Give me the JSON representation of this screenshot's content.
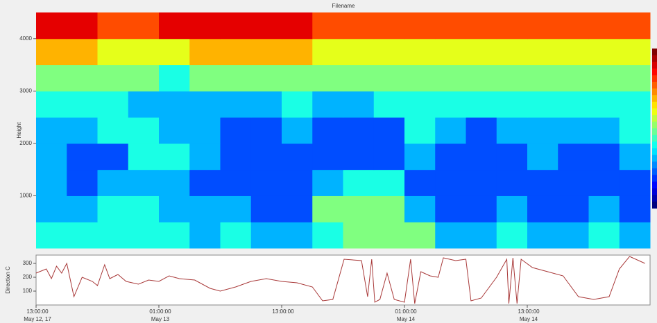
{
  "chart_data": [
    {
      "type": "heatmap",
      "title": "Filename",
      "ylabel": "Height",
      "xbins": [
        0,
        3,
        6,
        9,
        12,
        15,
        18,
        21,
        24,
        27,
        30,
        33,
        36,
        39,
        42,
        45,
        48,
        51,
        54,
        57,
        60
      ],
      "ybins": [
        0,
        500,
        1000,
        1500,
        2000,
        2500,
        3000,
        3500,
        4000,
        4500
      ],
      "z": [
        [
          4,
          4,
          4,
          4,
          4,
          3,
          4,
          3,
          3,
          4,
          5,
          5,
          5,
          3,
          3,
          4,
          3,
          3,
          4,
          3
        ],
        [
          3,
          3,
          4,
          4,
          3,
          3,
          3,
          2,
          2,
          5,
          5,
          5,
          3,
          2,
          2,
          3,
          2,
          2,
          3,
          2
        ],
        [
          3,
          2,
          3,
          3,
          3,
          2,
          2,
          2,
          2,
          3,
          4,
          4,
          2,
          2,
          2,
          2,
          2,
          2,
          2,
          2
        ],
        [
          3,
          2,
          2,
          4,
          4,
          3,
          2,
          2,
          2,
          2,
          2,
          2,
          3,
          2,
          2,
          2,
          3,
          2,
          2,
          3
        ],
        [
          3,
          3,
          4,
          4,
          3,
          3,
          2,
          2,
          3,
          2,
          2,
          2,
          4,
          3,
          2,
          3,
          3,
          3,
          3,
          4
        ],
        [
          4,
          4,
          4,
          3,
          3,
          3,
          3,
          3,
          4,
          3,
          3,
          4,
          4,
          4,
          4,
          4,
          4,
          4,
          4,
          4
        ],
        [
          5,
          5,
          5,
          5,
          4,
          5,
          5,
          5,
          5,
          5,
          5,
          5,
          5,
          5,
          5,
          5,
          5,
          5,
          5,
          5
        ],
        [
          7,
          7,
          6,
          6,
          6,
          7,
          7,
          7,
          7,
          6,
          6,
          6,
          6,
          6,
          6,
          6,
          6,
          6,
          6,
          6
        ],
        [
          9,
          9,
          8,
          8,
          9,
          9,
          9,
          9,
          9,
          8,
          8,
          8,
          8,
          8,
          8,
          8,
          8,
          8,
          8,
          8
        ]
      ],
      "zlim": [
        0,
        10
      ],
      "xlim": [
        0,
        60
      ],
      "ylim": [
        0,
        4500
      ],
      "yticks": [
        1000,
        2000,
        3000,
        4000
      ]
    },
    {
      "type": "line",
      "ylabel": "Direction C",
      "xlim": [
        0,
        60
      ],
      "ylim": [
        0,
        360
      ],
      "yticks": [
        100,
        200,
        300
      ],
      "xticks": [
        {
          "value": 0,
          "label": "13:00:00"
        },
        {
          "value": 12,
          "label": "01:00:00"
        },
        {
          "value": 24,
          "label": "13:00:00"
        },
        {
          "value": 36,
          "label": "01:00:00"
        },
        {
          "value": 48,
          "label": "13:00:00"
        }
      ],
      "xtick_dates": [
        "May 12, 17",
        "May 13",
        null,
        "May 14",
        "May 14"
      ],
      "series": [
        {
          "color": "#a83838",
          "x": [
            0,
            1,
            1.5,
            2,
            2.5,
            3,
            3.7,
            4.5,
            5.5,
            6,
            6.7,
            7.2,
            8,
            8.8,
            10,
            11,
            12,
            13,
            14,
            15.5,
            17,
            18,
            19.5,
            21,
            22.5,
            24,
            25.5,
            27,
            28,
            29,
            30.1,
            31.8,
            32.4,
            32.8,
            33.1,
            33.6,
            34.3,
            35,
            36,
            36.6,
            37,
            37.6,
            38.5,
            39.3,
            39.8,
            41,
            42,
            42.5,
            43.5,
            45,
            46,
            46.2,
            46.6,
            47,
            47.4,
            48.5,
            50,
            51.5,
            53,
            54.5,
            56,
            57,
            58,
            59.5
          ],
          "values": [
            230,
            260,
            190,
            280,
            230,
            300,
            60,
            200,
            170,
            140,
            290,
            190,
            220,
            170,
            150,
            180,
            170,
            210,
            190,
            180,
            120,
            100,
            130,
            170,
            190,
            170,
            160,
            130,
            30,
            40,
            330,
            320,
            60,
            330,
            20,
            40,
            230,
            40,
            20,
            330,
            10,
            240,
            210,
            200,
            340,
            320,
            330,
            30,
            50,
            200,
            330,
            10,
            340,
            10,
            330,
            270,
            240,
            210,
            60,
            40,
            60,
            260,
            350,
            300
          ]
        }
      ]
    }
  ]
}
